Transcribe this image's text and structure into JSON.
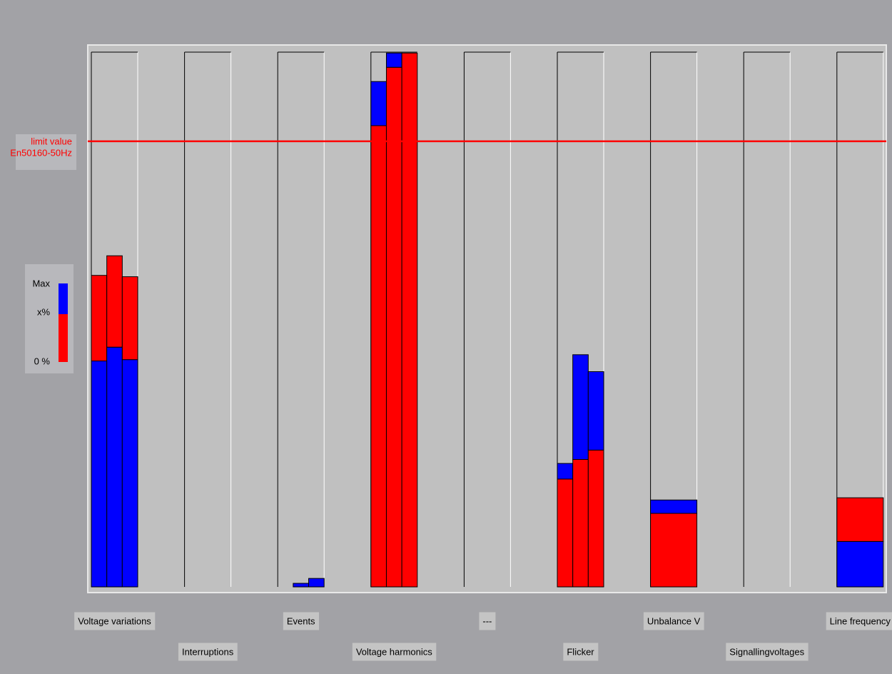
{
  "chart_data": {
    "type": "bar",
    "stacked": true,
    "categories": [
      "Voltage variations",
      "Interruptions",
      "Events",
      "Voltage harmonics",
      "---",
      "Flicker",
      "Unbalance V",
      "Signallingvoltages",
      "Line frequency"
    ],
    "groups": [
      {
        "bars": [
          {
            "segments": [
              {
                "color": "#0000ff",
                "value": 50.7
              },
              {
                "color": "#ff0000",
                "value": 19.2
              }
            ]
          },
          {
            "segments": [
              {
                "color": "#0000ff",
                "value": 53.8
              },
              {
                "color": "#ff0000",
                "value": 20.5
              }
            ]
          },
          {
            "segments": [
              {
                "color": "#0000ff",
                "value": 51
              },
              {
                "color": "#ff0000",
                "value": 18.6
              }
            ]
          }
        ]
      },
      {
        "bars": []
      },
      {
        "bars": [
          {
            "segments": []
          },
          {
            "segments": [
              {
                "color": "#0000ff",
                "value": 0.8
              }
            ]
          },
          {
            "segments": [
              {
                "color": "#0000ff",
                "value": 1.9
              }
            ]
          }
        ]
      },
      {
        "bars": [
          {
            "segments": [
              {
                "color": "#ff0000",
                "value": 103.5
              },
              {
                "color": "#0000ff",
                "value": 9.9
              }
            ]
          },
          {
            "segments": [
              {
                "color": "#ff0000",
                "value": 116.6
              },
              {
                "color": "#0000ff",
                "value": 3.2
              }
            ]
          },
          {
            "segments": [
              {
                "color": "#ff0000",
                "value": 119.8
              }
            ]
          }
        ]
      },
      {
        "bars": []
      },
      {
        "bars": [
          {
            "segments": [
              {
                "color": "#ff0000",
                "value": 24.2
              },
              {
                "color": "#0000ff",
                "value": 3.5
              }
            ]
          },
          {
            "segments": [
              {
                "color": "#ff0000",
                "value": 28.6
              },
              {
                "color": "#0000ff",
                "value": 23.5
              }
            ]
          },
          {
            "segments": [
              {
                "color": "#ff0000",
                "value": 30.7
              },
              {
                "color": "#0000ff",
                "value": 17.6
              }
            ]
          }
        ]
      },
      {
        "bars": [
          {
            "segments": [
              {
                "color": "#ff0000",
                "value": 16.5
              },
              {
                "color": "#0000ff",
                "value": 3
              }
            ]
          }
        ]
      },
      {
        "bars": []
      },
      {
        "bars": [
          {
            "segments": [
              {
                "color": "#0000ff",
                "value": 10.2
              },
              {
                "color": "#ff0000",
                "value": 9.8
              }
            ]
          }
        ]
      }
    ],
    "ylim": [
      0,
      120
    ],
    "limit": {
      "value": 100,
      "label": [
        "limit value",
        "En50160-50Hz"
      ],
      "color": "#ff0000"
    },
    "legend": {
      "labels": [
        "Max",
        "x%",
        "0 %"
      ],
      "colors": [
        "#0000ff",
        "#ff0000"
      ]
    }
  }
}
